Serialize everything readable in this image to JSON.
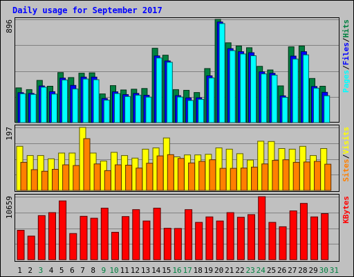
{
  "chart_data": {
    "type": "bar",
    "title": "Daily usage for September 2017",
    "categories": [
      "1",
      "2",
      "3",
      "4",
      "5",
      "6",
      "7",
      "8",
      "9",
      "10",
      "11",
      "12",
      "13",
      "14",
      "15",
      "16",
      "17",
      "18",
      "19",
      "20",
      "21",
      "22",
      "23",
      "24",
      "25",
      "26",
      "27",
      "28",
      "29",
      "30",
      "31"
    ],
    "weekend_days": [
      "3",
      "9",
      "10",
      "16",
      "17",
      "23",
      "24",
      "30",
      "31"
    ],
    "panels": [
      {
        "id": "requests",
        "ylabel_parts": [
          "Pages",
          "Files",
          "Hits"
        ],
        "ymax_label": "896",
        "ymax": 896,
        "series": [
          {
            "name": "Hits",
            "color": "#008040",
            "values": [
              301,
              286,
              366,
              316,
              434,
              391,
              429,
              432,
              249,
              321,
              283,
              290,
              296,
              645,
              585,
              286,
              280,
              261,
              469,
              896,
              693,
              665,
              650,
              488,
              457,
              319,
              658,
              665,
              383,
              316,
              0
            ]
          },
          {
            "name": "Files",
            "color": "#0000ff",
            "values": [
              260,
              253,
              318,
              268,
              386,
              323,
              395,
              395,
              209,
              267,
              243,
              253,
              237,
              579,
              535,
              234,
              214,
              215,
              406,
              874,
              642,
              616,
              607,
              441,
              428,
              232,
              577,
              616,
              313,
              263,
              0
            ]
          },
          {
            "name": "Pages",
            "color": "#00ffff",
            "values": [
              250,
              245,
              307,
              248,
              370,
              292,
              378,
              372,
              195,
              252,
              227,
              238,
              221,
              561,
              524,
              222,
              192,
              202,
              387,
              860,
              625,
              596,
              580,
              423,
              412,
              219,
              552,
              588,
              299,
              233,
              0
            ]
          }
        ]
      },
      {
        "id": "visitors",
        "ylabel_parts": [
          "Sites",
          "Visits"
        ],
        "ymax_label": "197",
        "ymax": 197,
        "series": [
          {
            "name": "Visits",
            "color": "#ffff00",
            "values": [
              138,
              109,
              109,
              99,
              117,
              117,
              197,
              117,
              92,
              119,
              109,
              101,
              129,
              133,
              164,
              105,
              111,
              111,
              113,
              133,
              129,
              115,
              95,
              154,
              153,
              131,
              129,
              138,
              109,
              131,
              0
            ]
          },
          {
            "name": "Sites",
            "color": "#ff8000",
            "values": [
              88,
              65,
              60,
              66,
              80,
              78,
              162,
              83,
              62,
              80,
              79,
              70,
              85,
              108,
              112,
              100,
              86,
              91,
              96,
              69,
              69,
              70,
              73,
              83,
              94,
              96,
              88,
              89,
              91,
              82,
              0
            ]
          }
        ]
      },
      {
        "id": "kbytes",
        "ylabel_parts": [
          "KBytes"
        ],
        "ymax_label": "10659",
        "ymax": 10659,
        "series": [
          {
            "name": "KBytes",
            "color": "#ff0000",
            "values": [
              4980,
              4000,
              7460,
              7960,
              9940,
              4430,
              7350,
              7020,
              8720,
              4640,
              7300,
              8470,
              6550,
              8720,
              5320,
              5280,
              8470,
              6310,
              7240,
              6550,
              7960,
              7180,
              7620,
              10659,
              6310,
              5570,
              8260,
              9520,
              7240,
              7790,
              0
            ]
          }
        ]
      }
    ],
    "grid": true
  }
}
